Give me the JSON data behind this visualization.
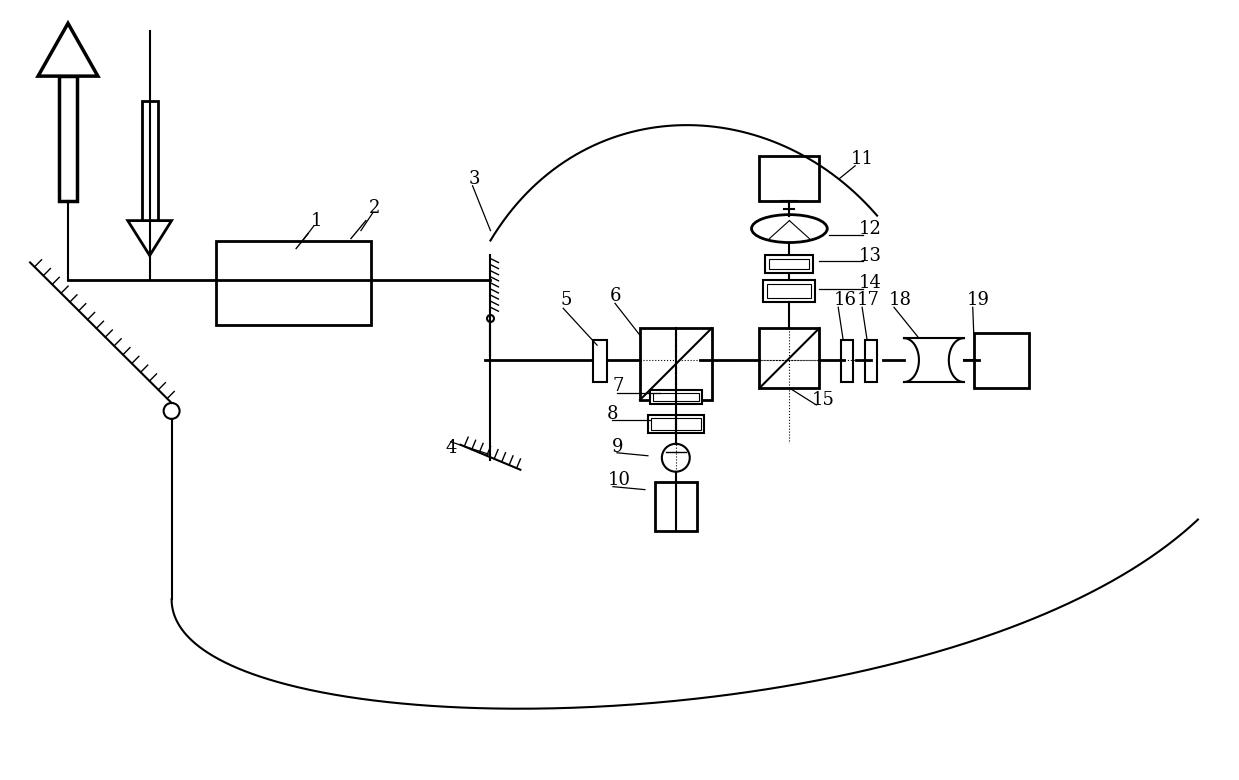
{
  "bg_color": "#ffffff",
  "line_color": "#000000",
  "fig_width": 12.39,
  "fig_height": 7.8
}
